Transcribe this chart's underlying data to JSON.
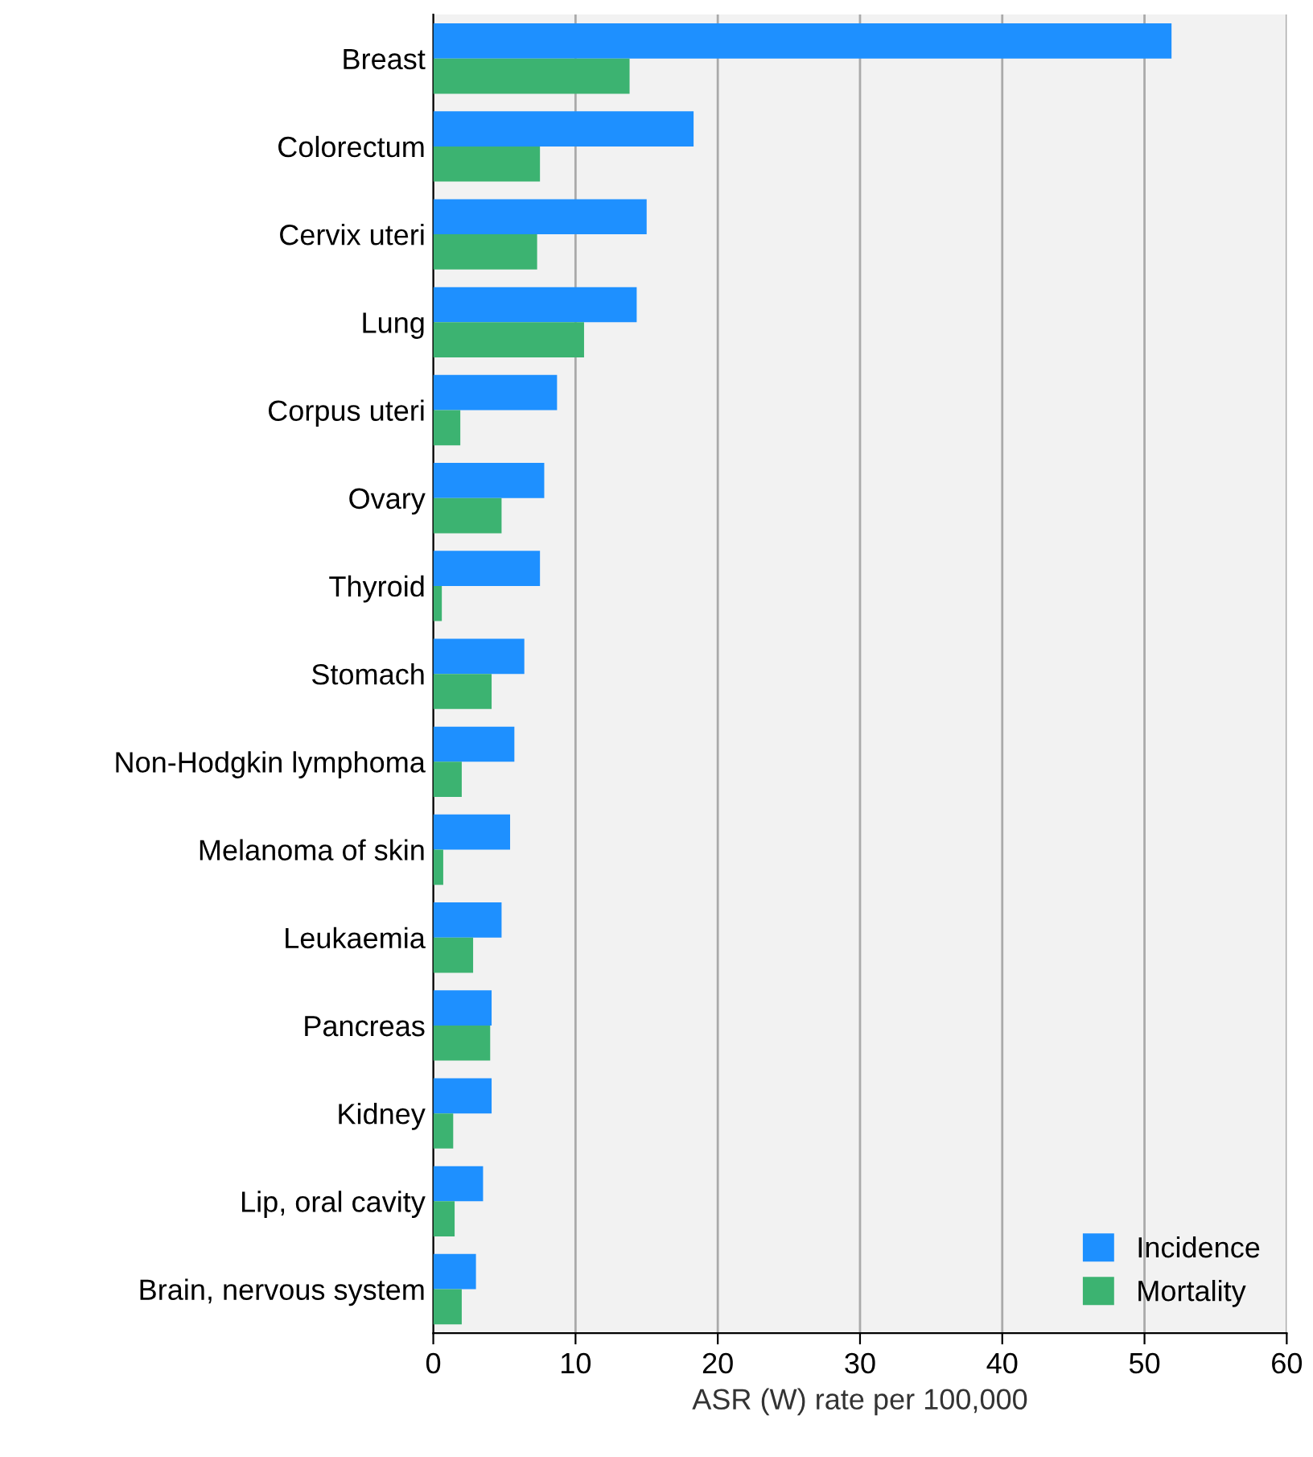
{
  "chart_data": {
    "type": "bar",
    "orientation": "horizontal",
    "xlabel": "ASR (W) rate per 100,000",
    "categories": [
      "Breast",
      "Colorectum",
      "Cervix uteri",
      "Lung",
      "Corpus uteri",
      "Ovary",
      "Thyroid",
      "Stomach",
      "Non-Hodgkin lymphoma",
      "Melanoma of skin",
      "Leukaemia",
      "Pancreas",
      "Kidney",
      "Lip, oral cavity",
      "Brain, nervous system"
    ],
    "series": [
      {
        "name": "Incidence",
        "color": "#1e90ff",
        "values": [
          51.9,
          18.3,
          15.0,
          14.3,
          8.7,
          7.8,
          7.5,
          6.4,
          5.7,
          5.4,
          4.8,
          4.1,
          4.1,
          3.5,
          3.0
        ]
      },
      {
        "name": "Mortality",
        "color": "#3cb371",
        "values": [
          13.8,
          7.5,
          7.3,
          10.6,
          1.9,
          4.8,
          0.6,
          4.1,
          2.0,
          0.7,
          2.8,
          4.0,
          1.4,
          1.5,
          2.0
        ]
      }
    ],
    "xlim": [
      0,
      60
    ],
    "xticks": [
      0,
      10,
      20,
      30,
      40,
      50,
      60
    ],
    "grid": "x",
    "legend": "bottom right"
  }
}
